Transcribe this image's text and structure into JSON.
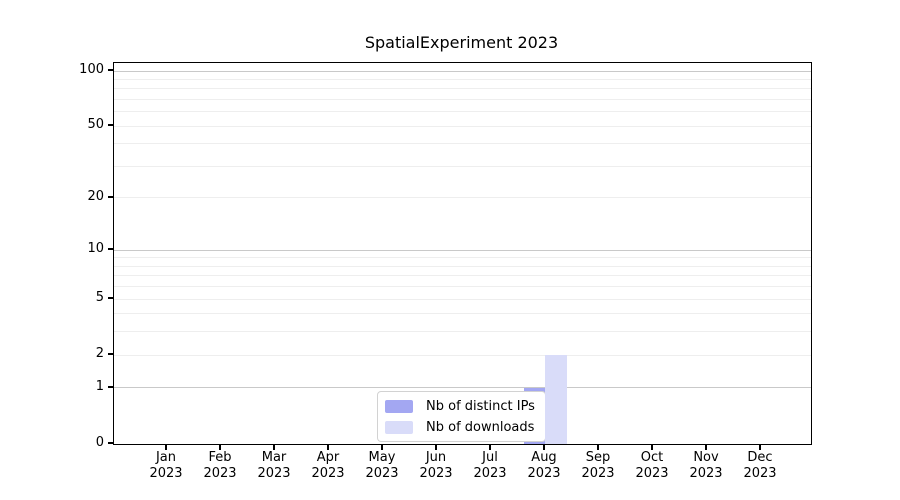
{
  "chart_data": {
    "type": "bar",
    "title": "SpatialExperiment 2023",
    "x_tick_months": [
      "Jan",
      "Feb",
      "Mar",
      "Apr",
      "May",
      "Jun",
      "Jul",
      "Aug",
      "Sep",
      "Oct",
      "Nov",
      "Dec"
    ],
    "x_tick_year": "2023",
    "y_scale": "log1p",
    "y_tick_values": [
      0,
      1,
      2,
      5,
      10,
      20,
      50,
      100
    ],
    "y_major_grid_values": [
      1,
      10,
      100
    ],
    "y_minor_grid_values": [
      2,
      3,
      4,
      5,
      6,
      7,
      8,
      9,
      20,
      30,
      40,
      50,
      60,
      70,
      80,
      90
    ],
    "ylim": [
      0,
      100
    ],
    "grid": true,
    "legend_position": "inside-bottom-center",
    "series": [
      {
        "name": "Nb of distinct IPs",
        "color": "#a3a7f2",
        "values": [
          0,
          0,
          0,
          0,
          0,
          0,
          0,
          1,
          0,
          0,
          0,
          0
        ]
      },
      {
        "name": "Nb of downloads",
        "color": "#d9dcf9",
        "values": [
          0,
          0,
          0,
          0,
          0,
          0,
          0,
          2,
          0,
          0,
          0,
          0
        ]
      }
    ]
  },
  "colors": {
    "background": "#ffffff",
    "axis": "#000000",
    "grid_major": "#c9c9c9",
    "grid_minor": "#eeeeee",
    "text": "#000000",
    "legend_border": "#d2d2d2",
    "legend_background": "#ffffff"
  }
}
